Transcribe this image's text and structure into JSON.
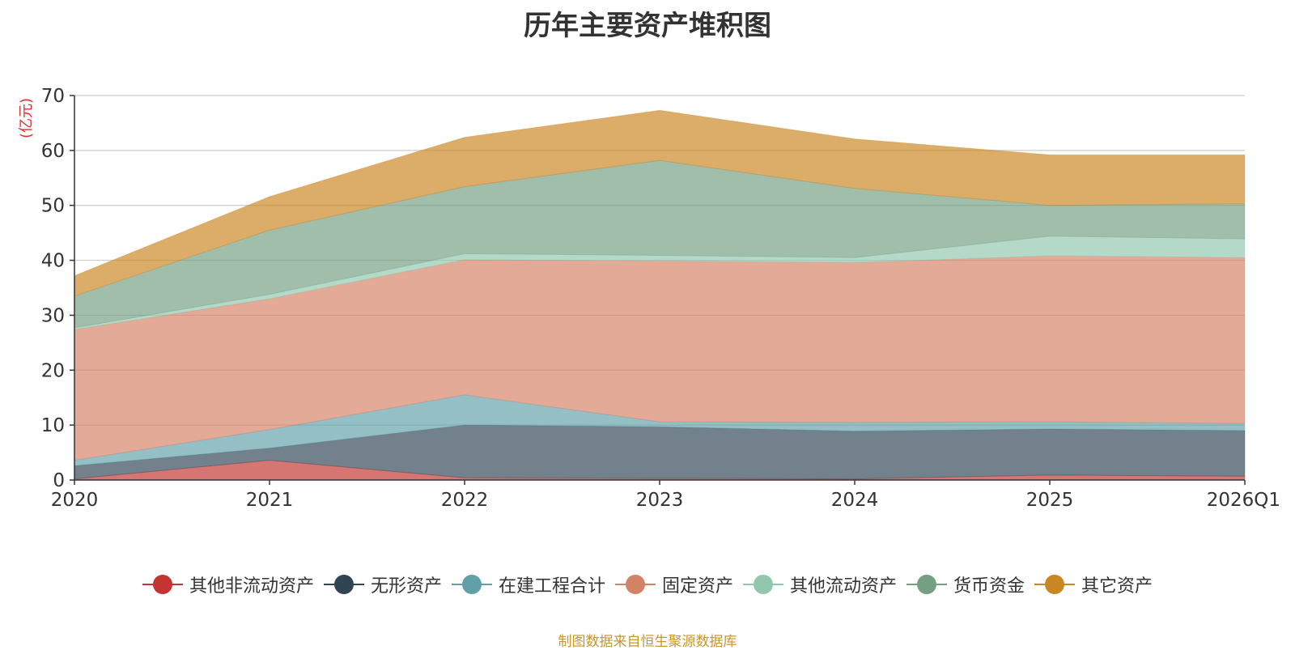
{
  "chart_data": {
    "type": "area",
    "stacked": true,
    "title": "历年主要资产堆积图",
    "ylabel": "(亿元)",
    "xlabel": "",
    "categories": [
      "2020",
      "2021",
      "2022",
      "2023",
      "2024",
      "2025",
      "2026Q1"
    ],
    "ylim": [
      0,
      70
    ],
    "yticks": [
      0,
      10,
      20,
      30,
      40,
      50,
      60,
      70
    ],
    "grid": true,
    "legend_position": "bottom",
    "series": [
      {
        "name": "其他非流动资产",
        "color": "#c23531",
        "values": [
          0.2,
          3.6,
          0.4,
          0.3,
          0.2,
          0.9,
          0.7
        ]
      },
      {
        "name": "无形资产",
        "color": "#2f4554",
        "values": [
          2.4,
          2.2,
          9.6,
          9.4,
          8.7,
          8.4,
          8.3
        ]
      },
      {
        "name": "在建工程合计",
        "color": "#61a0a8",
        "values": [
          1.0,
          3.4,
          5.5,
          0.9,
          1.6,
          1.3,
          1.3
        ]
      },
      {
        "name": "固定资产",
        "color": "#d48265",
        "values": [
          23.8,
          23.8,
          24.6,
          29.3,
          29.1,
          30.2,
          30.2
        ]
      },
      {
        "name": "其他流动资产",
        "color": "#91c7ae",
        "values": [
          0.3,
          0.8,
          1.1,
          1.0,
          0.9,
          3.6,
          3.4
        ]
      },
      {
        "name": "货币资金",
        "color": "#749f83",
        "values": [
          5.8,
          11.7,
          12.2,
          17.3,
          12.6,
          5.6,
          6.4
        ]
      },
      {
        "name": "其它资产",
        "color": "#ca8622",
        "values": [
          3.7,
          6.1,
          9.0,
          9.1,
          9.0,
          9.2,
          8.9
        ]
      }
    ],
    "source_note": "制图数据来自恒生聚源数据库"
  }
}
